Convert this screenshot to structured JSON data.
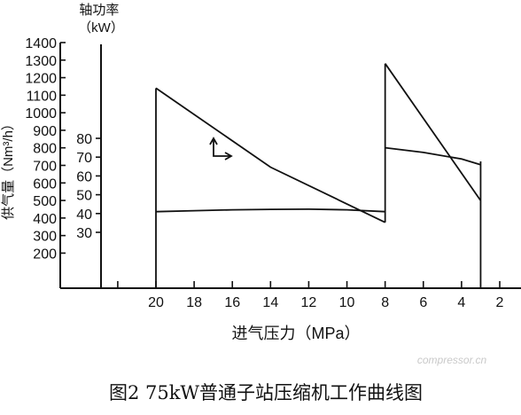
{
  "chart_data": {
    "type": "line",
    "xlabel": "进气压力（MPa）",
    "x_ticks": [
      20,
      18,
      16,
      14,
      12,
      10,
      8,
      6,
      4,
      2
    ],
    "xlim": [
      22,
      1
    ],
    "x_direction": "reversed",
    "y_left": {
      "label": "供气量（Nm³/h）",
      "ticks": [
        200,
        300,
        400,
        500,
        600,
        700,
        800,
        900,
        1000,
        1100,
        1200,
        1300,
        1400
      ],
      "range": [
        0,
        1400
      ]
    },
    "y_right": {
      "label": "轴功率（kW）",
      "ticks": [
        30,
        40,
        50,
        60,
        70,
        80
      ],
      "range": [
        30,
        80
      ]
    },
    "series": [
      {
        "axis": "left",
        "points": [
          [
            20,
            1140
          ],
          [
            14,
            690
          ],
          [
            8,
            375
          ],
          [
            8,
            1280
          ],
          [
            3,
            500
          ]
        ]
      },
      {
        "axis": "right",
        "points": [
          [
            20,
            41
          ],
          [
            18,
            41.5
          ],
          [
            16,
            42
          ],
          [
            14,
            42.2
          ],
          [
            12,
            42.3
          ],
          [
            10,
            42
          ],
          [
            8,
            41
          ],
          [
            8,
            75
          ],
          [
            6,
            72.5
          ],
          [
            4,
            69
          ],
          [
            3,
            66
          ]
        ]
      }
    ],
    "vertical_markers": [
      20,
      8,
      3
    ]
  },
  "caption": "图2 75kW普通子站压缩机工作曲线图",
  "watermark": "compressor.cn"
}
